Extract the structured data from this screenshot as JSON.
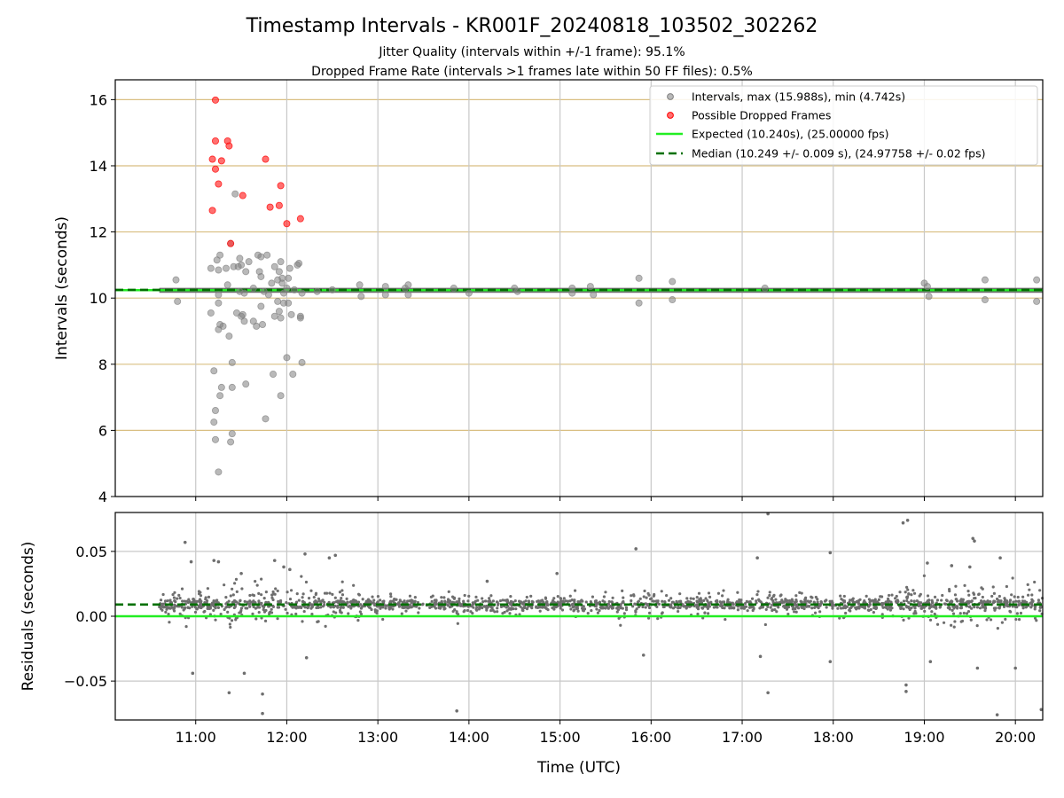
{
  "chart_data": [
    {
      "type": "scatter",
      "title": "Timestamp Intervals - KR001F_20240818_103502_302262",
      "subtitle_lines": [
        "Jitter Quality (intervals within +/-1 frame): 95.1%",
        "Dropped Frame Rate (intervals >1 frames late within 50 FF files): 0.5%"
      ],
      "xlabel": "",
      "ylabel": "Intervals (seconds)",
      "xlim": [
        "10:07",
        "20:18"
      ],
      "ylim": [
        4,
        16.6
      ],
      "yticks": [
        4,
        6,
        8,
        10,
        12,
        14,
        16
      ],
      "ytick_labels": [
        "4",
        "6",
        "8",
        "10",
        "12",
        "14",
        "16"
      ],
      "xticks": [
        "11:00",
        "12:00",
        "13:00",
        "14:00",
        "15:00",
        "16:00",
        "17:00",
        "18:00",
        "19:00",
        "20:00"
      ],
      "grid": true,
      "legend_position": "top-right",
      "legend": [
        "Intervals, max (15.988s), min (4.742s)",
        "Possible Dropped Frames",
        "Expected (10.240s), (25.00000 fps)",
        "Median (10.249 +/- 0.009 s), (24.97758 +/- 0.02 fps)"
      ],
      "expected_line": 10.24,
      "median_line": 10.249,
      "series": [
        {
          "name": "Intervals, max (15.988s), min (4.742s)",
          "color": "#808080",
          "points": [
            [
              "10:47",
              10.55
            ],
            [
              "10:48",
              9.9
            ],
            [
              "11:10",
              9.55
            ],
            [
              "11:10",
              10.9
            ],
            [
              "11:12",
              6.25
            ],
            [
              "11:12",
              7.8
            ],
            [
              "11:13",
              6.6
            ],
            [
              "11:13",
              5.72
            ],
            [
              "11:14",
              11.15
            ],
            [
              "11:15",
              10.85
            ],
            [
              "11:15",
              10.1
            ],
            [
              "11:15",
              9.85
            ],
            [
              "11:15",
              9.05
            ],
            [
              "11:15",
              4.742
            ],
            [
              "11:16",
              11.3
            ],
            [
              "11:16",
              9.2
            ],
            [
              "11:16",
              7.05
            ],
            [
              "11:17",
              7.3
            ],
            [
              "11:18",
              9.15
            ],
            [
              "11:20",
              10.9
            ],
            [
              "11:21",
              10.4
            ],
            [
              "11:22",
              8.85
            ],
            [
              "11:23",
              11.65
            ],
            [
              "11:23",
              5.65
            ],
            [
              "11:24",
              5.9
            ],
            [
              "11:24",
              8.05
            ],
            [
              "11:24",
              7.3
            ],
            [
              "11:25",
              10.95
            ],
            [
              "11:26",
              13.15
            ],
            [
              "11:27",
              9.55
            ],
            [
              "11:28",
              10.95
            ],
            [
              "11:29",
              10.2
            ],
            [
              "11:29",
              11.2
            ],
            [
              "11:30",
              11.0
            ],
            [
              "11:30",
              9.45
            ],
            [
              "11:31",
              9.5
            ],
            [
              "11:32",
              10.15
            ],
            [
              "11:32",
              9.3
            ],
            [
              "11:33",
              10.8
            ],
            [
              "11:33",
              7.4
            ],
            [
              "11:35",
              11.1
            ],
            [
              "11:38",
              9.3
            ],
            [
              "11:38",
              10.3
            ],
            [
              "11:40",
              9.15
            ],
            [
              "11:41",
              11.3
            ],
            [
              "11:42",
              10.8
            ],
            [
              "11:43",
              9.75
            ],
            [
              "11:43",
              10.65
            ],
            [
              "11:43",
              11.25
            ],
            [
              "11:44",
              9.2
            ],
            [
              "11:45",
              10.2
            ],
            [
              "11:46",
              6.35
            ],
            [
              "11:47",
              11.3
            ],
            [
              "11:48",
              10.1
            ],
            [
              "11:50",
              10.45
            ],
            [
              "11:51",
              7.7
            ],
            [
              "11:52",
              10.95
            ],
            [
              "11:52",
              9.45
            ],
            [
              "11:54",
              9.9
            ],
            [
              "11:54",
              10.55
            ],
            [
              "11:55",
              10.8
            ],
            [
              "11:55",
              9.6
            ],
            [
              "11:56",
              9.4
            ],
            [
              "11:56",
              7.05
            ],
            [
              "11:56",
              11.1
            ],
            [
              "11:57",
              10.6
            ],
            [
              "11:57",
              10.45
            ],
            [
              "11:58",
              9.85
            ],
            [
              "11:58",
              10.15
            ],
            [
              "12:00",
              8.2
            ],
            [
              "12:00",
              10.3
            ],
            [
              "12:01",
              9.85
            ],
            [
              "12:01",
              10.6
            ],
            [
              "12:02",
              10.9
            ],
            [
              "12:03",
              9.5
            ],
            [
              "12:04",
              7.7
            ],
            [
              "12:05",
              10.25
            ],
            [
              "12:07",
              11.0
            ],
            [
              "12:08",
              11.05
            ],
            [
              "12:09",
              9.4
            ],
            [
              "12:09",
              9.45
            ],
            [
              "12:10",
              8.05
            ],
            [
              "12:10",
              10.15
            ],
            [
              "12:20",
              10.2
            ],
            [
              "12:30",
              10.25
            ],
            [
              "12:48",
              10.4
            ],
            [
              "12:49",
              10.05
            ],
            [
              "13:05",
              10.35
            ],
            [
              "13:05",
              10.1
            ],
            [
              "13:18",
              10.3
            ],
            [
              "13:20",
              10.1
            ],
            [
              "13:20",
              10.4
            ],
            [
              "13:50",
              10.3
            ],
            [
              "14:00",
              10.15
            ],
            [
              "14:30",
              10.3
            ],
            [
              "14:32",
              10.2
            ],
            [
              "15:08",
              10.3
            ],
            [
              "15:08",
              10.15
            ],
            [
              "15:20",
              10.35
            ],
            [
              "15:22",
              10.1
            ],
            [
              "15:52",
              10.6
            ],
            [
              "15:52",
              9.85
            ],
            [
              "16:14",
              10.5
            ],
            [
              "16:14",
              9.95
            ],
            [
              "17:15",
              10.3
            ],
            [
              "19:00",
              10.45
            ],
            [
              "19:02",
              10.35
            ],
            [
              "19:03",
              10.05
            ],
            [
              "19:40",
              10.55
            ],
            [
              "19:40",
              9.95
            ],
            [
              "20:14",
              10.55
            ],
            [
              "20:14",
              9.9
            ]
          ]
        },
        {
          "name": "Possible Dropped Frames",
          "color": "#ff0000",
          "points": [
            [
              "11:13",
              15.988
            ],
            [
              "11:11",
              14.2
            ],
            [
              "11:13",
              14.75
            ],
            [
              "11:13",
              13.9
            ],
            [
              "11:15",
              13.45
            ],
            [
              "11:17",
              14.15
            ],
            [
              "11:21",
              14.75
            ],
            [
              "11:22",
              14.6
            ],
            [
              "11:23",
              11.65
            ],
            [
              "11:11",
              12.65
            ],
            [
              "11:31",
              13.1
            ],
            [
              "11:46",
              14.2
            ],
            [
              "11:49",
              12.75
            ],
            [
              "11:56",
              13.4
            ],
            [
              "11:55",
              12.8
            ],
            [
              "12:00",
              12.25
            ],
            [
              "12:09",
              12.4
            ]
          ]
        }
      ]
    },
    {
      "type": "scatter",
      "title": "",
      "xlabel": "Time (UTC)",
      "ylabel": "Residuals (seconds)",
      "xlim": [
        "10:07",
        "20:18"
      ],
      "ylim": [
        -0.08,
        0.08
      ],
      "yticks": [
        -0.05,
        0.0,
        0.05
      ],
      "ytick_labels": [
        "−0.05",
        "0.00",
        "0.05"
      ],
      "xticks": [
        "11:00",
        "12:00",
        "13:00",
        "14:00",
        "15:00",
        "16:00",
        "17:00",
        "18:00",
        "19:00",
        "20:00"
      ],
      "grid": true,
      "zero_line": 0.0,
      "median_offset": 0.009,
      "series": [
        {
          "name": "",
          "color": "#6e6e6e",
          "points": [
            [
              "10:53",
              0.057
            ],
            [
              "10:57",
              0.042
            ],
            [
              "10:58",
              -0.044
            ],
            [
              "11:12",
              0.043
            ],
            [
              "11:15",
              0.042
            ],
            [
              "11:22",
              -0.059
            ],
            [
              "11:30",
              0.033
            ],
            [
              "11:32",
              -0.044
            ],
            [
              "11:44",
              -0.06
            ],
            [
              "11:44",
              -0.075
            ],
            [
              "11:52",
              0.043
            ],
            [
              "11:58",
              0.038
            ],
            [
              "12:02",
              0.036
            ],
            [
              "12:12",
              0.048
            ],
            [
              "12:13",
              -0.032
            ],
            [
              "12:28",
              0.045
            ],
            [
              "12:32",
              0.047
            ],
            [
              "13:52",
              -0.073
            ],
            [
              "14:12",
              0.027
            ],
            [
              "14:58",
              0.033
            ],
            [
              "15:50",
              0.052
            ],
            [
              "15:55",
              -0.03
            ],
            [
              "17:10",
              0.045
            ],
            [
              "17:17",
              0.079
            ],
            [
              "17:17",
              -0.059
            ],
            [
              "17:12",
              -0.031
            ],
            [
              "17:58",
              0.049
            ],
            [
              "17:58",
              -0.035
            ],
            [
              "18:46",
              0.072
            ],
            [
              "18:49",
              0.074
            ],
            [
              "18:48",
              -0.053
            ],
            [
              "18:48",
              -0.058
            ],
            [
              "19:02",
              0.041
            ],
            [
              "19:04",
              -0.035
            ],
            [
              "19:18",
              0.039
            ],
            [
              "19:30",
              0.038
            ],
            [
              "19:32",
              0.06
            ],
            [
              "19:33",
              0.058
            ],
            [
              "19:35",
              -0.04
            ],
            [
              "19:48",
              -0.076
            ],
            [
              "19:50",
              0.045
            ],
            [
              "20:00",
              -0.04
            ],
            [
              "20:17",
              -0.072
            ]
          ]
        }
      ]
    }
  ]
}
